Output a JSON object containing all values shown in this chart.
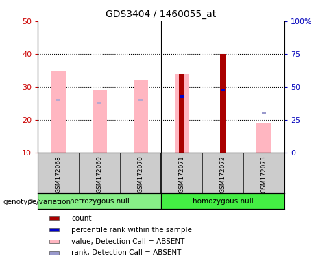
{
  "title": "GDS3404 / 1460055_at",
  "samples": [
    "GSM172068",
    "GSM172069",
    "GSM172070",
    "GSM172071",
    "GSM172072",
    "GSM172073"
  ],
  "ylim_left": [
    10,
    50
  ],
  "ylim_right": [
    0,
    100
  ],
  "yticks_left": [
    10,
    20,
    30,
    40,
    50
  ],
  "ytick_labels_right": [
    "0",
    "25",
    "50",
    "75",
    "100%"
  ],
  "pink_bar_values": [
    35,
    29,
    32,
    34,
    null,
    19
  ],
  "pink_rank_values": [
    26,
    25,
    26,
    null,
    null,
    null
  ],
  "red_bar_values": [
    null,
    null,
    null,
    34,
    40,
    null
  ],
  "blue_rank_values": [
    null,
    null,
    null,
    27,
    29,
    null
  ],
  "light_blue_rank_values": [
    null,
    null,
    null,
    null,
    null,
    22
  ],
  "pink_color": "#FFB6C1",
  "pink_rank_color": "#B8A8D0",
  "red_color": "#AA0000",
  "blue_color": "#0000CC",
  "light_blue_color": "#9999CC",
  "left_tick_color": "#CC0000",
  "right_tick_color": "#0000BB",
  "bg_color": "#CCCCCC",
  "plot_bg": "#FFFFFF",
  "hetero_color": "#88EE88",
  "homo_color": "#44EE44",
  "genotype_label": "genotype/variation",
  "hetero_label": "hetrozygous null",
  "homo_label": "homozygous null",
  "legend_items": [
    {
      "color": "#AA0000",
      "label": "count"
    },
    {
      "color": "#0000CC",
      "label": "percentile rank within the sample"
    },
    {
      "color": "#FFB6C1",
      "label": "value, Detection Call = ABSENT"
    },
    {
      "color": "#9999CC",
      "label": "rank, Detection Call = ABSENT"
    }
  ]
}
